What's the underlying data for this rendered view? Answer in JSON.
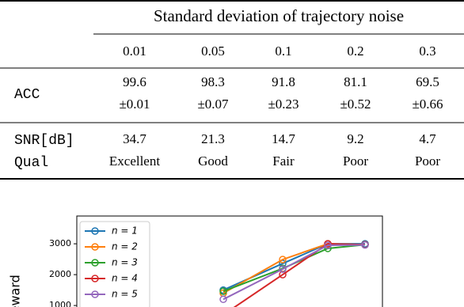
{
  "table": {
    "header": "Standard deviation of trajectory noise",
    "columns": [
      0.01,
      0.05,
      0.1,
      0.2,
      0.3
    ],
    "rows": [
      {
        "label": "ACC",
        "values": [
          99.6,
          98.3,
          91.8,
          81.1,
          69.5
        ],
        "errors": [
          "±0.01",
          "±0.07",
          "±0.23",
          "±0.52",
          "±0.66"
        ]
      },
      {
        "label": "SNR[dB]",
        "values": [
          34.7,
          21.3,
          14.7,
          9.2,
          4.7
        ]
      },
      {
        "label": "Qual",
        "values": [
          "Excellent",
          "Good",
          "Fair",
          "Poor",
          "Poor"
        ]
      }
    ]
  },
  "chart_data": {
    "type": "line",
    "y_label": "Reward",
    "categories": [
      null,
      null,
      null,
      null
    ],
    "series": [
      {
        "name": "n = 1",
        "color": "#1f77b4",
        "values": [
          1500,
          2360,
          3000,
          3000
        ]
      },
      {
        "name": "n = 2",
        "color": "#ff7f0e",
        "values": [
          1400,
          2490,
          3000,
          2970
        ]
      },
      {
        "name": "n = 3",
        "color": "#2ca02c",
        "values": [
          1460,
          2200,
          2850,
          2970
        ]
      },
      {
        "name": "n = 4",
        "color": "#d62728",
        "values": [
          700,
          2000,
          3000,
          2970
        ]
      },
      {
        "name": "n = 5",
        "color": "#9467bd",
        "values": [
          1200,
          2180,
          2950,
          2960
        ]
      }
    ],
    "ylim": [
      0,
      3900
    ],
    "yticks": [
      1000,
      2000,
      3000
    ],
    "legend": "upper left"
  }
}
